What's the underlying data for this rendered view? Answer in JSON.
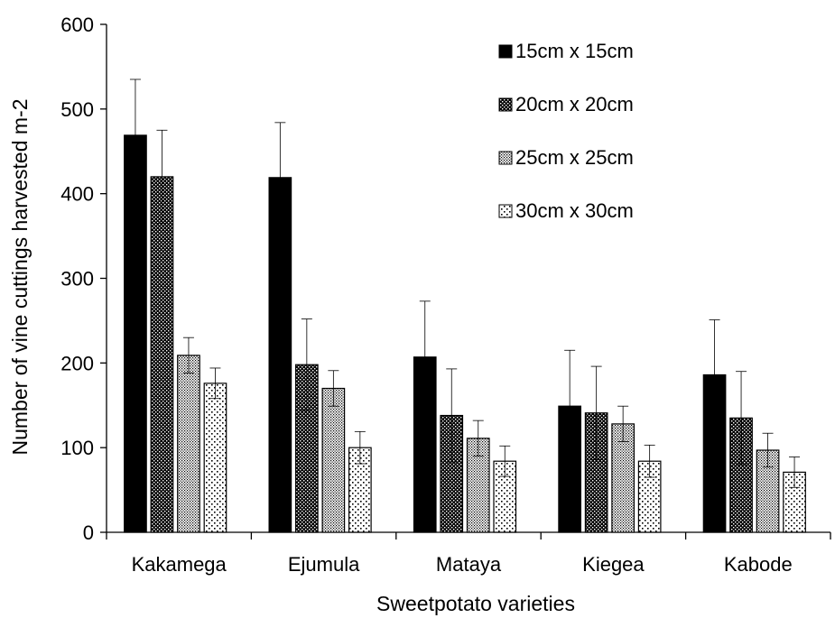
{
  "chart_data": {
    "type": "bar",
    "title": "",
    "xlabel": "Sweetpotato varieties",
    "ylabel": "Number of vine cuttings harvested m-2",
    "ylim": [
      0,
      600
    ],
    "yticks": [
      "0",
      "100",
      "200",
      "300",
      "400",
      "500",
      "600"
    ],
    "categories": [
      "Kakamega",
      "Ejumula",
      "Mataya",
      "Kiegea",
      "Kabode"
    ],
    "legend_position": "top-right",
    "grid": false,
    "series": [
      {
        "name": "15cm x 15cm",
        "pattern": "solid",
        "values": [
          469,
          419,
          207,
          149,
          186
        ],
        "errors": [
          66,
          65,
          66,
          66,
          65
        ]
      },
      {
        "name": "20cm x 20cm",
        "pattern": "dense-dots",
        "values": [
          420,
          198,
          138,
          141,
          135
        ],
        "errors": [
          55,
          54,
          55,
          55,
          55
        ]
      },
      {
        "name": "25cm x 25cm",
        "pattern": "fine-dots",
        "values": [
          209,
          170,
          111,
          128,
          97
        ],
        "errors": [
          21,
          21,
          21,
          21,
          20
        ]
      },
      {
        "name": "30cm x 30cm",
        "pattern": "sparse-dots",
        "values": [
          176,
          100,
          84,
          84,
          71
        ],
        "errors": [
          18,
          19,
          18,
          19,
          18
        ]
      }
    ],
    "colors": {
      "ink": "#000000",
      "background": "#ffffff"
    }
  }
}
